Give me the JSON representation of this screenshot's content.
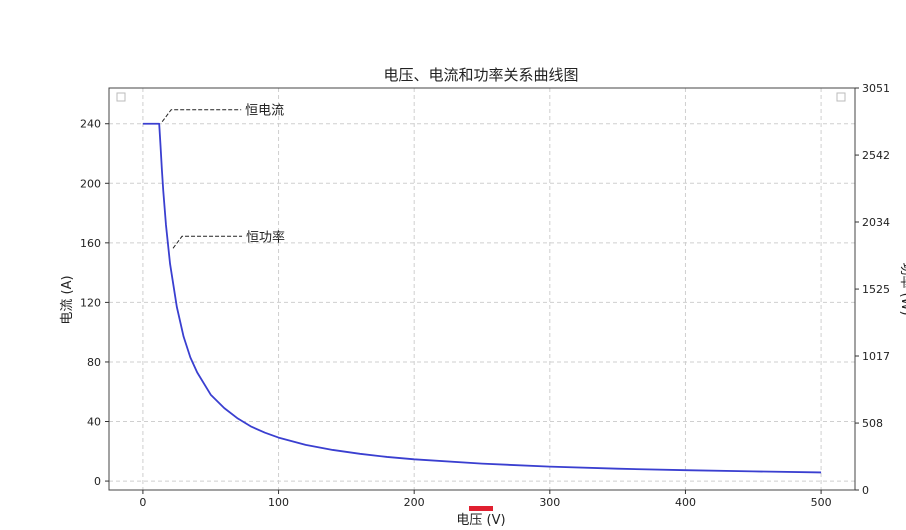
{
  "chart_data": {
    "type": "line",
    "title": "电压、电流和功率关系曲线图",
    "xlabel": "电压 (V)",
    "ylabel": "电流 (A)",
    "y2label": "功率 (W)",
    "xlim": [
      -25,
      525
    ],
    "ylim": [
      -6,
      264
    ],
    "y2lim": [
      0,
      3051
    ],
    "x_ticks": [
      0,
      100,
      200,
      300,
      400,
      500
    ],
    "y_ticks": [
      0,
      40,
      80,
      120,
      160,
      200,
      240
    ],
    "y2_ticks": [
      0,
      508,
      1017,
      1525,
      2034,
      2542,
      3051
    ],
    "grid": true,
    "series": [
      {
        "color": "#3a3fd0",
        "points": [
          [
            0,
            240
          ],
          [
            5,
            240
          ],
          [
            10,
            240
          ],
          [
            12,
            240
          ],
          [
            13,
            225
          ],
          [
            14,
            209
          ],
          [
            15,
            195
          ],
          [
            17,
            172
          ],
          [
            20,
            146
          ],
          [
            25,
            117
          ],
          [
            30,
            97
          ],
          [
            35,
            83
          ],
          [
            40,
            73
          ],
          [
            50,
            58
          ],
          [
            60,
            49
          ],
          [
            70,
            42
          ],
          [
            80,
            36.5
          ],
          [
            90,
            32.5
          ],
          [
            100,
            29.2
          ],
          [
            120,
            24.3
          ],
          [
            140,
            20.9
          ],
          [
            160,
            18.3
          ],
          [
            180,
            16.2
          ],
          [
            200,
            14.6
          ],
          [
            250,
            11.7
          ],
          [
            300,
            9.7
          ],
          [
            350,
            8.3
          ],
          [
            400,
            7.3
          ],
          [
            450,
            6.5
          ],
          [
            500,
            5.8
          ]
        ]
      }
    ],
    "annotations": [
      {
        "text": "恒电流",
        "x": 12,
        "y": 240
      },
      {
        "text": "恒功率",
        "x": 20,
        "y": 155
      }
    ]
  }
}
